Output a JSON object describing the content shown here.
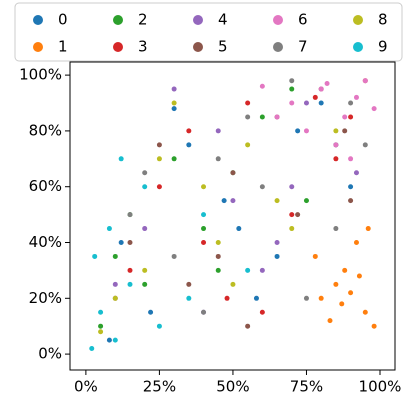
{
  "chart_data": {
    "type": "scatter",
    "series": [
      {
        "name": "0",
        "color": "#1f77b4",
        "x": [
          12,
          35,
          58,
          80,
          22,
          47,
          90,
          65,
          30,
          8,
          72,
          52
        ],
        "y": [
          40,
          75,
          20,
          90,
          15,
          55,
          60,
          35,
          88,
          5,
          80,
          45
        ]
      },
      {
        "name": "1",
        "color": "#ff7f0e",
        "x": [
          80,
          88,
          95,
          92,
          85,
          98,
          78,
          90,
          96,
          83,
          93,
          87
        ],
        "y": [
          20,
          30,
          15,
          40,
          25,
          10,
          35,
          22,
          45,
          12,
          28,
          18
        ]
      },
      {
        "name": "2",
        "color": "#2ca02c",
        "x": [
          5,
          15,
          30,
          45,
          60,
          75,
          20,
          50,
          10,
          70,
          40,
          85
        ],
        "y": [
          10,
          50,
          70,
          30,
          85,
          55,
          25,
          65,
          35,
          95,
          45,
          75
        ]
      },
      {
        "name": "3",
        "color": "#d62728",
        "x": [
          25,
          55,
          85,
          40,
          70,
          15,
          95,
          60,
          35,
          78,
          48,
          90
        ],
        "y": [
          60,
          90,
          70,
          40,
          50,
          30,
          98,
          15,
          80,
          92,
          20,
          85
        ]
      },
      {
        "name": "4",
        "color": "#9467bd",
        "x": [
          20,
          45,
          70,
          30,
          60,
          85,
          10,
          50,
          75,
          40,
          92,
          65
        ],
        "y": [
          45,
          80,
          60,
          95,
          30,
          75,
          25,
          55,
          90,
          15,
          65,
          40
        ]
      },
      {
        "name": "5",
        "color": "#8c564b",
        "x": [
          35,
          65,
          90,
          15,
          50,
          80,
          25,
          55,
          45,
          72,
          10,
          88
        ],
        "y": [
          25,
          85,
          55,
          40,
          65,
          95,
          75,
          10,
          35,
          50,
          20,
          80
        ]
      },
      {
        "name": "6",
        "color": "#e377c2",
        "x": [
          80,
          88,
          95,
          70,
          85,
          92,
          98,
          60,
          75,
          90,
          82,
          65
        ],
        "y": [
          95,
          85,
          98,
          90,
          75,
          92,
          88,
          96,
          80,
          70,
          97,
          85
        ]
      },
      {
        "name": "7",
        "color": "#7f7f7f",
        "x": [
          30,
          60,
          90,
          45,
          75,
          15,
          55,
          85,
          40,
          70,
          20,
          95
        ],
        "y": [
          35,
          60,
          90,
          70,
          20,
          50,
          85,
          45,
          15,
          98,
          65,
          75
        ]
      },
      {
        "name": "8",
        "color": "#bcbd22",
        "x": [
          5,
          20,
          40,
          55,
          70,
          10,
          30,
          50,
          65,
          85,
          25,
          45
        ],
        "y": [
          8,
          30,
          60,
          75,
          45,
          20,
          90,
          25,
          55,
          80,
          70,
          40
        ]
      },
      {
        "name": "9",
        "color": "#17becf",
        "x": [
          2,
          5,
          10,
          15,
          3,
          25,
          40,
          8,
          20,
          35,
          55,
          12
        ],
        "y": [
          2,
          15,
          5,
          25,
          35,
          10,
          50,
          45,
          60,
          20,
          30,
          70
        ]
      }
    ],
    "xlim": [
      -5.4,
      105.1
    ],
    "ylim": [
      -5.7,
      104.7
    ],
    "xticks": [
      {
        "value": 0,
        "label": "0%"
      },
      {
        "value": 25,
        "label": "25%"
      },
      {
        "value": 50,
        "label": "50%"
      },
      {
        "value": 75,
        "label": "75%"
      },
      {
        "value": 100,
        "label": "100%"
      }
    ],
    "yticks": [
      {
        "value": 0,
        "label": "0%"
      },
      {
        "value": 20,
        "label": "20%"
      },
      {
        "value": 40,
        "label": "40%"
      },
      {
        "value": 60,
        "label": "60%"
      },
      {
        "value": 80,
        "label": "80%"
      },
      {
        "value": 100,
        "label": "100%"
      }
    ],
    "legend": "top"
  }
}
